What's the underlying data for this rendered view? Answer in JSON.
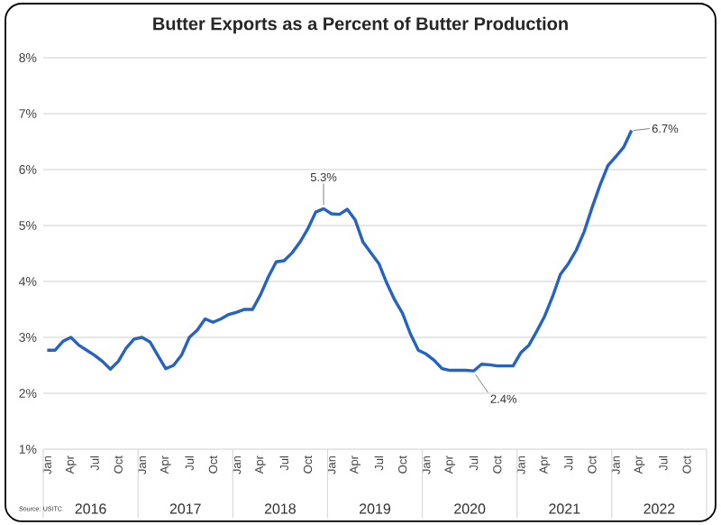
{
  "chart_data": {
    "type": "line",
    "title": "Butter Exports as a Percent of Butter Production",
    "categories": [
      "Jan",
      null,
      null,
      "Apr",
      null,
      null,
      "Jul",
      null,
      null,
      "Oct",
      null,
      null,
      "Jan",
      null,
      null,
      "Apr",
      null,
      null,
      "Jul",
      null,
      null,
      "Oct",
      null,
      null,
      "Jan",
      null,
      null,
      "Apr",
      null,
      null,
      "Jul",
      null,
      null,
      "Oct",
      null,
      null,
      "Jan",
      null,
      null,
      "Apr",
      null,
      null,
      "Jul",
      null,
      null,
      "Oct",
      null,
      null,
      "Jan",
      null,
      null,
      "Apr",
      null,
      null,
      "Jul",
      null,
      null,
      "Oct",
      null,
      null,
      "Jan",
      null,
      null,
      "Apr",
      null,
      null,
      "Jul",
      null,
      null,
      "Oct",
      null,
      null,
      "Jan",
      null,
      null,
      "Apr",
      null,
      null,
      "Jul",
      null,
      null,
      "Oct",
      null,
      null
    ],
    "values": [
      2.77,
      2.77,
      2.93,
      3.0,
      2.86,
      2.77,
      2.68,
      2.57,
      2.43,
      2.57,
      2.81,
      2.97,
      3.0,
      2.92,
      2.68,
      2.44,
      2.5,
      2.68,
      3.0,
      3.13,
      3.33,
      3.27,
      3.33,
      3.41,
      3.45,
      3.5,
      3.5,
      3.76,
      4.08,
      4.35,
      4.37,
      4.51,
      4.7,
      4.94,
      5.24,
      5.3,
      5.21,
      5.2,
      5.29,
      5.1,
      4.7,
      4.51,
      4.32,
      3.97,
      3.67,
      3.43,
      3.06,
      2.77,
      2.7,
      2.59,
      2.44,
      2.41,
      2.41,
      2.41,
      2.4,
      2.52,
      2.51,
      2.49,
      2.49,
      2.49,
      2.73,
      2.86,
      3.11,
      3.38,
      3.73,
      4.13,
      4.32,
      4.56,
      4.89,
      5.32,
      5.72,
      6.07,
      6.23,
      6.4,
      6.7,
      null,
      null,
      null,
      null,
      null,
      null,
      null,
      null,
      null
    ],
    "color": "#2462c4",
    "ylim": [
      1,
      8
    ],
    "yticks": [
      {
        "value": 1,
        "label": "1%"
      },
      {
        "value": 2,
        "label": "2%"
      },
      {
        "value": 3,
        "label": "3%"
      },
      {
        "value": 4,
        "label": "4%"
      },
      {
        "value": 5,
        "label": "5%"
      },
      {
        "value": 6,
        "label": "6%"
      },
      {
        "value": 7,
        "label": "7%"
      },
      {
        "value": 8,
        "label": "8%"
      }
    ],
    "grid": "y",
    "annotations": [
      "Source: USITC",
      "2016",
      "2017",
      "2018",
      "2019",
      "2020",
      "2021",
      "2022",
      {
        "text": "5.3%",
        "y": 5.3
      },
      {
        "text": "2.4%",
        "y": 2.4
      },
      "6.7%"
    ]
  }
}
